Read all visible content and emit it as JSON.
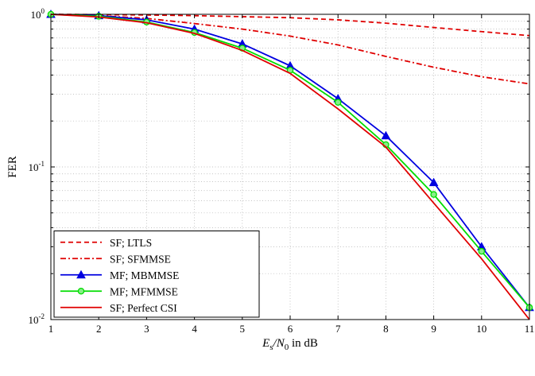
{
  "chart_data": {
    "type": "line",
    "xlabel_var": "E",
    "xlabel_sub": "s",
    "xlabel_mid": "/N",
    "xlabel_sub2": "0",
    "xlabel_rest": " in dB",
    "ylabel": "FER",
    "xlim": [
      1,
      11
    ],
    "ylim": [
      0.01,
      1
    ],
    "yscale": "log",
    "grid": true,
    "x_ticks": [
      1,
      2,
      3,
      4,
      5,
      6,
      7,
      8,
      9,
      10,
      11
    ],
    "y_ticks": [
      {
        "value": 1,
        "base": "10",
        "exp": "0"
      },
      {
        "value": 0.1,
        "base": "10",
        "exp": "-1"
      },
      {
        "value": 0.01,
        "base": "10",
        "exp": "-2"
      }
    ],
    "legend_position": "bottom-left",
    "series": [
      {
        "name": "SF; LTLS",
        "color": "#e00000",
        "dash": "6,4",
        "marker": "none",
        "x": [
          1,
          2,
          3,
          4,
          5,
          6,
          7,
          8,
          9,
          10,
          11
        ],
        "y": [
          1.0,
          0.995,
          0.99,
          0.98,
          0.965,
          0.95,
          0.92,
          0.875,
          0.82,
          0.77,
          0.725
        ]
      },
      {
        "name": "SF; SFMMSE",
        "color": "#e00000",
        "dash": "7,3,2,3",
        "marker": "none",
        "x": [
          1,
          2,
          3,
          4,
          5,
          6,
          7,
          8,
          9,
          10,
          11
        ],
        "y": [
          1.0,
          0.98,
          0.94,
          0.87,
          0.8,
          0.72,
          0.63,
          0.53,
          0.45,
          0.39,
          0.35
        ]
      },
      {
        "name": "MF; MBMMSE",
        "color": "#0000e0",
        "dash": "none",
        "marker": "triangle",
        "x": [
          1,
          2,
          3,
          4,
          5,
          6,
          7,
          8,
          9,
          10,
          11
        ],
        "y": [
          1.0,
          0.98,
          0.92,
          0.8,
          0.64,
          0.46,
          0.28,
          0.16,
          0.079,
          0.03,
          0.012
        ]
      },
      {
        "name": "MF; MFMMSE",
        "color": "#00dd00",
        "dash": "none",
        "marker": "circle",
        "x": [
          1,
          2,
          3,
          4,
          5,
          6,
          7,
          8,
          9,
          10,
          11
        ],
        "y": [
          1.0,
          0.97,
          0.89,
          0.76,
          0.6,
          0.43,
          0.265,
          0.14,
          0.066,
          0.028,
          0.012
        ]
      },
      {
        "name": "SF; Perfect CSI",
        "color": "#e00000",
        "dash": "none",
        "marker": "none",
        "x": [
          1,
          2,
          3,
          4,
          5,
          6,
          7,
          8,
          9,
          10,
          11
        ],
        "y": [
          1.0,
          0.96,
          0.88,
          0.75,
          0.58,
          0.41,
          0.24,
          0.135,
          0.058,
          0.025,
          0.01
        ]
      }
    ]
  }
}
